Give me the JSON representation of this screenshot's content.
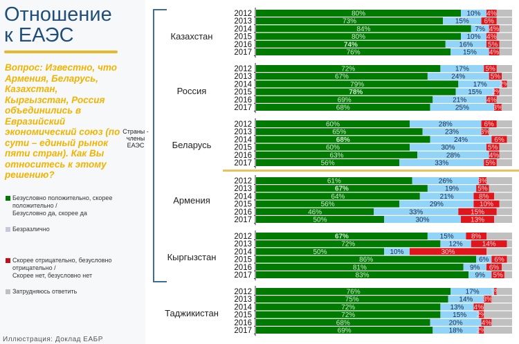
{
  "header": {
    "title_line1": "Отношение",
    "title_line2": "к ЕАЭС"
  },
  "question": "Вопрос: Известно, что Армения, Беларусь, Казахстан, Кыргызстан, Россия объединились в Евразийский экономический союз (по сути – единый рынок пяти стран). Как Вы относитесь к этому решению?",
  "members_label": "Страны - члены ЕАЭС",
  "credit": "Иллюстрация: Доклад ЕАБР",
  "colors": {
    "positive": "#007a00",
    "indifferent": "#92d4f7",
    "negative": "#e0161c",
    "dont_know": "#c0c0c0",
    "title": "#1f4e79",
    "accent": "#f0b400"
  },
  "legend": [
    {
      "key": "positive",
      "label_line1": "Безусловно положительно, скорее",
      "label_line2": "положительно /",
      "label_line3": "Безусловно да, скорее да"
    },
    {
      "key": "indifferent",
      "label_line1": "Безразлично"
    },
    {
      "key": "negative",
      "label_line1": "Скорее отрицательно, безусловно",
      "label_line2": "отрицательно /",
      "label_line3": "Скорее нет, безусловно нет"
    },
    {
      "key": "dont_know",
      "label_line1": "Затрудняюсь ответить"
    }
  ],
  "chart_data": {
    "type": "bar",
    "orientation": "horizontal-stacked-100",
    "title": "Отношение к ЕАЭС",
    "xlabel": "",
    "ylabel": "",
    "xlim": [
      0,
      100
    ],
    "categories_years": [
      "2012",
      "2013",
      "2014",
      "2015",
      "2016",
      "2017"
    ],
    "series_names": [
      "Безусловно положительно, скорее положительно",
      "Безразлично",
      "Скорее отрицательно, безусловно отрицательно",
      "Затрудняюсь ответить"
    ],
    "groups": [
      {
        "country": "Казахстан",
        "member": true,
        "positive": [
          80,
          73,
          84,
          80,
          74,
          76
        ],
        "indifferent": [
          10,
          15,
          7,
          10,
          16,
          15
        ],
        "negative": [
          4,
          6,
          4,
          4,
          5,
          4
        ],
        "dont_know": [
          6,
          6,
          5,
          6,
          5,
          5
        ],
        "bold": [
          false,
          false,
          false,
          false,
          true,
          false
        ]
      },
      {
        "country": "Россия",
        "member": true,
        "positive": [
          72,
          67,
          79,
          78,
          69,
          68
        ],
        "indifferent": [
          17,
          24,
          17,
          15,
          21,
          25
        ],
        "negative": [
          5,
          5,
          2,
          2,
          4,
          3
        ],
        "dont_know": [
          6,
          4,
          2,
          5,
          6,
          4
        ],
        "bold": [
          false,
          false,
          false,
          true,
          false,
          false
        ]
      },
      {
        "country": "Беларусь",
        "member": true,
        "positive": [
          60,
          65,
          68,
          60,
          63,
          56
        ],
        "indifferent": [
          28,
          23,
          24,
          30,
          28,
          33
        ],
        "negative": [
          6,
          3,
          6,
          5,
          4,
          5
        ],
        "dont_know": [
          6,
          9,
          2,
          5,
          5,
          6
        ],
        "bold": [
          false,
          false,
          true,
          false,
          false,
          false
        ]
      },
      {
        "country": "Армения",
        "member": true,
        "positive": [
          61,
          67,
          64,
          56,
          46,
          50
        ],
        "indifferent": [
          26,
          19,
          21,
          29,
          33,
          30
        ],
        "negative": [
          3,
          5,
          8,
          10,
          15,
          13
        ],
        "dont_know": [
          10,
          9,
          7,
          5,
          6,
          7
        ],
        "bold": [
          false,
          true,
          false,
          false,
          false,
          false
        ]
      },
      {
        "country": "Кыргызстан",
        "member": true,
        "positive": [
          67,
          72,
          50,
          86,
          81,
          83
        ],
        "indifferent": [
          15,
          12,
          10,
          6,
          9,
          9
        ],
        "negative": [
          8,
          14,
          30,
          6,
          6,
          5
        ],
        "dont_know": [
          10,
          2,
          10,
          2,
          4,
          3
        ],
        "bold": [
          true,
          false,
          false,
          false,
          false,
          false
        ]
      },
      {
        "country": "Таджикистан",
        "member": false,
        "positive": [
          76,
          75,
          72,
          72,
          68,
          69
        ],
        "indifferent": [
          17,
          14,
          13,
          15,
          20,
          18
        ],
        "negative": [
          1,
          3,
          4,
          2,
          4,
          2
        ],
        "dont_know": [
          6,
          8,
          11,
          11,
          8,
          11
        ],
        "bold": [
          false,
          false,
          false,
          false,
          false,
          false
        ]
      }
    ]
  }
}
